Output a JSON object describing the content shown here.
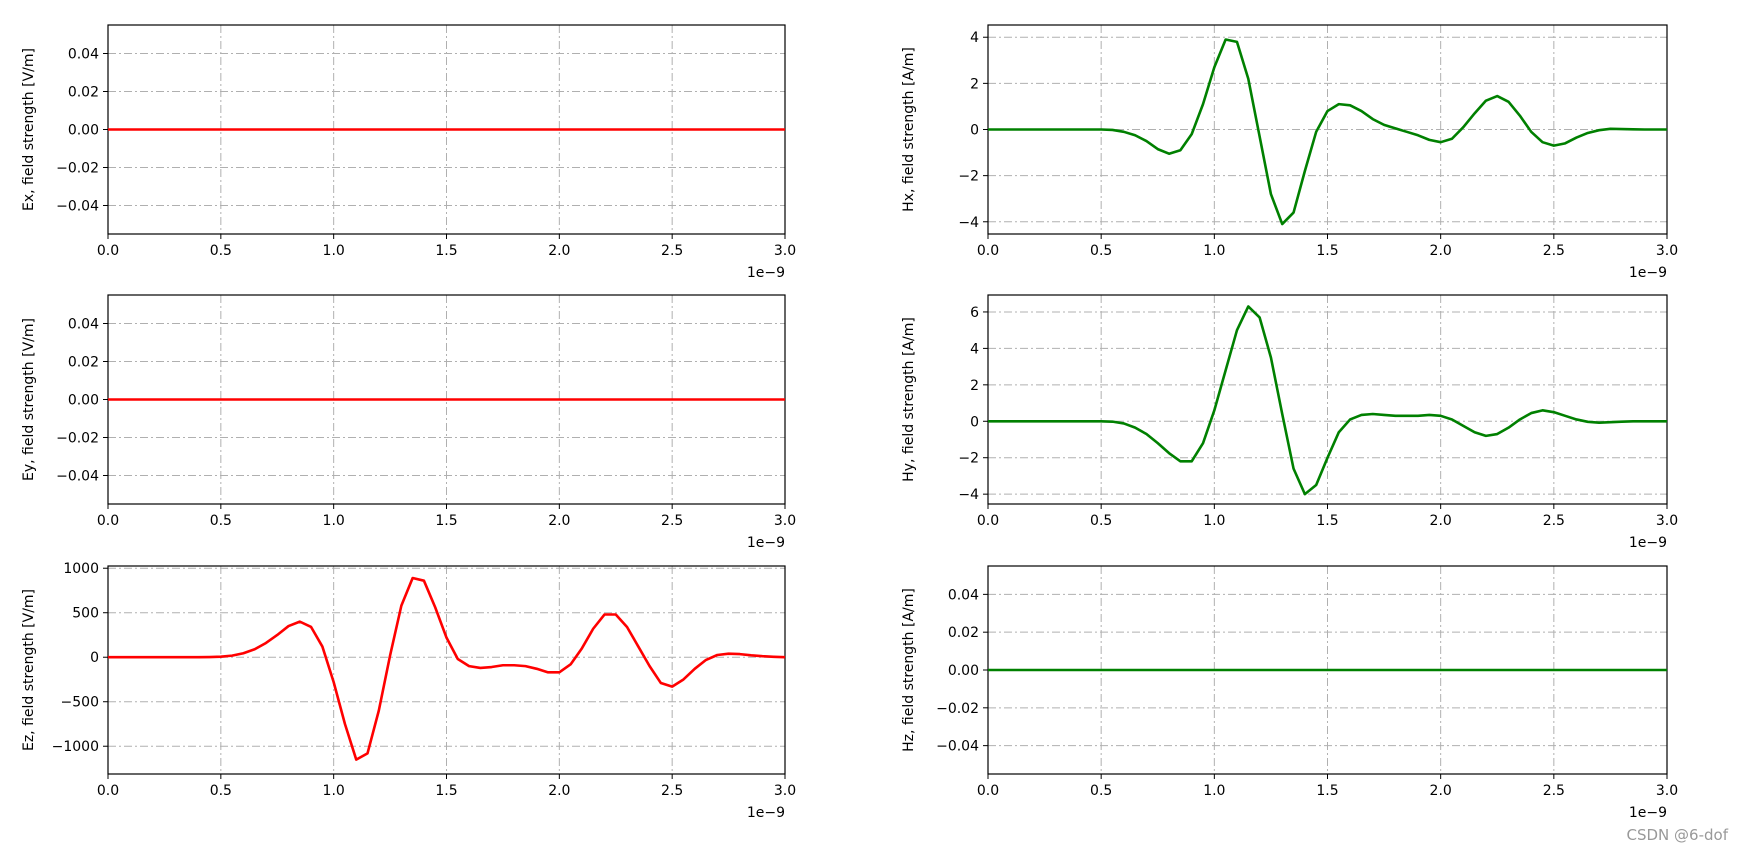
{
  "chart_data": [
    {
      "type": "line",
      "ylabel": "Ex, field strength [V/m]",
      "x_offset_label": "1e−9",
      "grid": true,
      "color": "#ff0000",
      "x": [
        0,
        3e-09
      ],
      "values": [
        0,
        0
      ],
      "xlim": [
        0,
        3e-09
      ],
      "xticks": [
        {
          "value": 0,
          "label": "0.0"
        },
        {
          "value": 5e-10,
          "label": "0.5"
        },
        {
          "value": 1e-09,
          "label": "1.0"
        },
        {
          "value": 1.5e-09,
          "label": "1.5"
        },
        {
          "value": 2e-09,
          "label": "2.0"
        },
        {
          "value": 2.5e-09,
          "label": "2.5"
        },
        {
          "value": 3e-09,
          "label": "3.0"
        }
      ],
      "ylim": [
        -0.055,
        0.055
      ],
      "yticks": [
        {
          "value": -0.04,
          "label": "−0.04"
        },
        {
          "value": -0.02,
          "label": "−0.02"
        },
        {
          "value": 0,
          "label": "0.00"
        },
        {
          "value": 0.02,
          "label": "0.02"
        },
        {
          "value": 0.04,
          "label": "0.04"
        }
      ]
    },
    {
      "type": "line",
      "ylabel": "Hx, field strength [A/m]",
      "x_offset_label": "1e−9",
      "grid": true,
      "color": "#008000",
      "x": [
        0,
        5e-11,
        1e-10,
        1.5e-10,
        2e-10,
        2.5e-10,
        3e-10,
        3.5e-10,
        4e-10,
        4.5e-10,
        5e-10,
        5.5e-10,
        6e-10,
        6.5e-10,
        7e-10,
        7.5e-10,
        8e-10,
        8.5e-10,
        9e-10,
        9.5e-10,
        1e-09,
        1.05e-09,
        1.1e-09,
        1.15e-09,
        1.2e-09,
        1.25e-09,
        1.3e-09,
        1.35e-09,
        1.4e-09,
        1.45e-09,
        1.5e-09,
        1.55e-09,
        1.6e-09,
        1.65e-09,
        1.7e-09,
        1.75e-09,
        1.8e-09,
        1.85e-09,
        1.9e-09,
        1.95e-09,
        2e-09,
        2.05e-09,
        2.1e-09,
        2.15e-09,
        2.2e-09,
        2.25e-09,
        2.3e-09,
        2.35e-09,
        2.4e-09,
        2.45e-09,
        2.5e-09,
        2.55e-09,
        2.6e-09,
        2.65e-09,
        2.7e-09,
        2.75e-09,
        2.8e-09,
        2.85e-09,
        2.9e-09,
        2.95e-09,
        3e-09
      ],
      "values": [
        0,
        0,
        0,
        0,
        0,
        0,
        0,
        0,
        0,
        0,
        0,
        -0.02,
        -0.1,
        -0.25,
        -0.5,
        -0.85,
        -1.05,
        -0.9,
        -0.2,
        1.1,
        2.7,
        3.9,
        3.8,
        2.2,
        -0.3,
        -2.8,
        -4.1,
        -3.6,
        -1.8,
        -0.1,
        0.8,
        1.1,
        1.05,
        0.8,
        0.45,
        0.2,
        0.05,
        -0.1,
        -0.25,
        -0.45,
        -0.55,
        -0.4,
        0.1,
        0.7,
        1.25,
        1.45,
        1.2,
        0.6,
        -0.1,
        -0.55,
        -0.7,
        -0.6,
        -0.35,
        -0.15,
        -0.03,
        0.03,
        0.02,
        0.01,
        0,
        0,
        0
      ],
      "xlim": [
        0,
        3e-09
      ],
      "xticks": [
        {
          "value": 0,
          "label": "0.0"
        },
        {
          "value": 5e-10,
          "label": "0.5"
        },
        {
          "value": 1e-09,
          "label": "1.0"
        },
        {
          "value": 1.5e-09,
          "label": "1.5"
        },
        {
          "value": 2e-09,
          "label": "2.0"
        },
        {
          "value": 2.5e-09,
          "label": "2.5"
        },
        {
          "value": 3e-09,
          "label": "3.0"
        }
      ],
      "ylim": [
        -4.53,
        4.53
      ],
      "yticks": [
        {
          "value": -4,
          "label": "−4"
        },
        {
          "value": -2,
          "label": "−2"
        },
        0,
        2,
        4
      ]
    },
    {
      "type": "line",
      "ylabel": "Ey, field strength [V/m]",
      "x_offset_label": "1e−9",
      "grid": true,
      "color": "#ff0000",
      "x": [
        0,
        3e-09
      ],
      "values": [
        0,
        0
      ],
      "xlim": [
        0,
        3e-09
      ],
      "xticks": [
        {
          "value": 0,
          "label": "0.0"
        },
        {
          "value": 5e-10,
          "label": "0.5"
        },
        {
          "value": 1e-09,
          "label": "1.0"
        },
        {
          "value": 1.5e-09,
          "label": "1.5"
        },
        {
          "value": 2e-09,
          "label": "2.0"
        },
        {
          "value": 2.5e-09,
          "label": "2.5"
        },
        {
          "value": 3e-09,
          "label": "3.0"
        }
      ],
      "ylim": [
        -0.055,
        0.055
      ],
      "yticks": [
        {
          "value": -0.04,
          "label": "−0.04"
        },
        {
          "value": -0.02,
          "label": "−0.02"
        },
        {
          "value": 0,
          "label": "0.00"
        },
        {
          "value": 0.02,
          "label": "0.02"
        },
        {
          "value": 0.04,
          "label": "0.04"
        }
      ]
    },
    {
      "type": "line",
      "ylabel": "Hy, field strength [A/m]",
      "x_offset_label": "1e−9",
      "grid": true,
      "color": "#008000",
      "x": [
        0,
        5e-11,
        1e-10,
        1.5e-10,
        2e-10,
        2.5e-10,
        3e-10,
        3.5e-10,
        4e-10,
        4.5e-10,
        5e-10,
        5.5e-10,
        6e-10,
        6.5e-10,
        7e-10,
        7.5e-10,
        8e-10,
        8.5e-10,
        9e-10,
        9.5e-10,
        1e-09,
        1.05e-09,
        1.1e-09,
        1.15e-09,
        1.2e-09,
        1.25e-09,
        1.3e-09,
        1.35e-09,
        1.4e-09,
        1.45e-09,
        1.5e-09,
        1.55e-09,
        1.6e-09,
        1.65e-09,
        1.7e-09,
        1.75e-09,
        1.8e-09,
        1.85e-09,
        1.9e-09,
        1.95e-09,
        2e-09,
        2.05e-09,
        2.1e-09,
        2.15e-09,
        2.2e-09,
        2.25e-09,
        2.3e-09,
        2.35e-09,
        2.4e-09,
        2.45e-09,
        2.5e-09,
        2.55e-09,
        2.6e-09,
        2.65e-09,
        2.7e-09,
        2.75e-09,
        2.8e-09,
        2.85e-09,
        2.9e-09,
        2.95e-09,
        3e-09
      ],
      "values": [
        0,
        0,
        0,
        0,
        0,
        0,
        0,
        0,
        0,
        0,
        0,
        -0.02,
        -0.12,
        -0.35,
        -0.7,
        -1.2,
        -1.75,
        -2.2,
        -2.2,
        -1.2,
        0.6,
        2.8,
        5.0,
        6.3,
        5.7,
        3.5,
        0.4,
        -2.6,
        -4.0,
        -3.5,
        -2.0,
        -0.6,
        0.1,
        0.35,
        0.4,
        0.35,
        0.3,
        0.3,
        0.3,
        0.35,
        0.3,
        0.1,
        -0.25,
        -0.6,
        -0.8,
        -0.7,
        -0.35,
        0.1,
        0.45,
        0.6,
        0.5,
        0.3,
        0.1,
        -0.03,
        -0.08,
        -0.05,
        -0.02,
        0,
        0,
        0,
        0
      ],
      "xlim": [
        0,
        3e-09
      ],
      "xticks": [
        {
          "value": 0,
          "label": "0.0"
        },
        {
          "value": 5e-10,
          "label": "0.5"
        },
        {
          "value": 1e-09,
          "label": "1.0"
        },
        {
          "value": 1.5e-09,
          "label": "1.5"
        },
        {
          "value": 2e-09,
          "label": "2.0"
        },
        {
          "value": 2.5e-09,
          "label": "2.5"
        },
        {
          "value": 3e-09,
          "label": "3.0"
        }
      ],
      "ylim": [
        -4.54,
        6.93
      ],
      "yticks": [
        {
          "value": -4,
          "label": "−4"
        },
        {
          "value": -2,
          "label": "−2"
        },
        0,
        2,
        4,
        6
      ]
    },
    {
      "type": "line",
      "ylabel": "Ez, field strength [V/m]",
      "x_offset_label": "1e−9",
      "grid": true,
      "color": "#ff0000",
      "x": [
        0,
        5e-11,
        1e-10,
        1.5e-10,
        2e-10,
        2.5e-10,
        3e-10,
        3.5e-10,
        4e-10,
        4.5e-10,
        5e-10,
        5.5e-10,
        6e-10,
        6.5e-10,
        7e-10,
        7.5e-10,
        8e-10,
        8.5e-10,
        9e-10,
        9.5e-10,
        1e-09,
        1.05e-09,
        1.1e-09,
        1.15e-09,
        1.2e-09,
        1.25e-09,
        1.3e-09,
        1.35e-09,
        1.4e-09,
        1.45e-09,
        1.5e-09,
        1.55e-09,
        1.6e-09,
        1.65e-09,
        1.7e-09,
        1.75e-09,
        1.8e-09,
        1.85e-09,
        1.9e-09,
        1.95e-09,
        2e-09,
        2.05e-09,
        2.1e-09,
        2.15e-09,
        2.2e-09,
        2.25e-09,
        2.3e-09,
        2.35e-09,
        2.4e-09,
        2.45e-09,
        2.5e-09,
        2.55e-09,
        2.6e-09,
        2.65e-09,
        2.7e-09,
        2.75e-09,
        2.8e-09,
        2.85e-09,
        2.9e-09,
        2.95e-09,
        3e-09
      ],
      "values": [
        0,
        0,
        0,
        0,
        0,
        0,
        0,
        0,
        0,
        2,
        6,
        18,
        45,
        90,
        160,
        250,
        350,
        400,
        340,
        120,
        -280,
        -750,
        -1150,
        -1080,
        -600,
        20,
        580,
        890,
        860,
        560,
        220,
        -20,
        -100,
        -120,
        -110,
        -90,
        -90,
        -100,
        -130,
        -170,
        -170,
        -80,
        100,
        320,
        480,
        480,
        340,
        120,
        -100,
        -290,
        -330,
        -250,
        -130,
        -30,
        25,
        40,
        35,
        22,
        12,
        5,
        0
      ],
      "xlim": [
        0,
        3e-09
      ],
      "xticks": [
        {
          "value": 0,
          "label": "0.0"
        },
        {
          "value": 5e-10,
          "label": "0.5"
        },
        {
          "value": 1e-09,
          "label": "1.0"
        },
        {
          "value": 1.5e-09,
          "label": "1.5"
        },
        {
          "value": 2e-09,
          "label": "2.0"
        },
        {
          "value": 2.5e-09,
          "label": "2.5"
        },
        {
          "value": 3e-09,
          "label": "3.0"
        }
      ],
      "ylim": [
        -1312,
        1025
      ],
      "yticks": [
        {
          "value": -1000,
          "label": "−1000"
        },
        {
          "value": -500,
          "label": "−500"
        },
        0,
        500,
        1000
      ]
    },
    {
      "type": "line",
      "ylabel": "Hz, field strength [A/m]",
      "x_offset_label": "1e−9",
      "grid": true,
      "color": "#008000",
      "x": [
        0,
        3e-09
      ],
      "values": [
        0,
        0
      ],
      "xlim": [
        0,
        3e-09
      ],
      "xticks": [
        {
          "value": 0,
          "label": "0.0"
        },
        {
          "value": 5e-10,
          "label": "0.5"
        },
        {
          "value": 1e-09,
          "label": "1.0"
        },
        {
          "value": 1.5e-09,
          "label": "1.5"
        },
        {
          "value": 2e-09,
          "label": "2.0"
        },
        {
          "value": 2.5e-09,
          "label": "2.5"
        },
        {
          "value": 3e-09,
          "label": "3.0"
        }
      ],
      "ylim": [
        -0.055,
        0.055
      ],
      "yticks": [
        {
          "value": -0.04,
          "label": "−0.04"
        },
        {
          "value": -0.02,
          "label": "−0.02"
        },
        {
          "value": 0,
          "label": "0.00"
        },
        {
          "value": 0.02,
          "label": "0.02"
        },
        {
          "value": 0.04,
          "label": "0.04"
        }
      ]
    }
  ],
  "watermark": "CSDN @6-dof"
}
